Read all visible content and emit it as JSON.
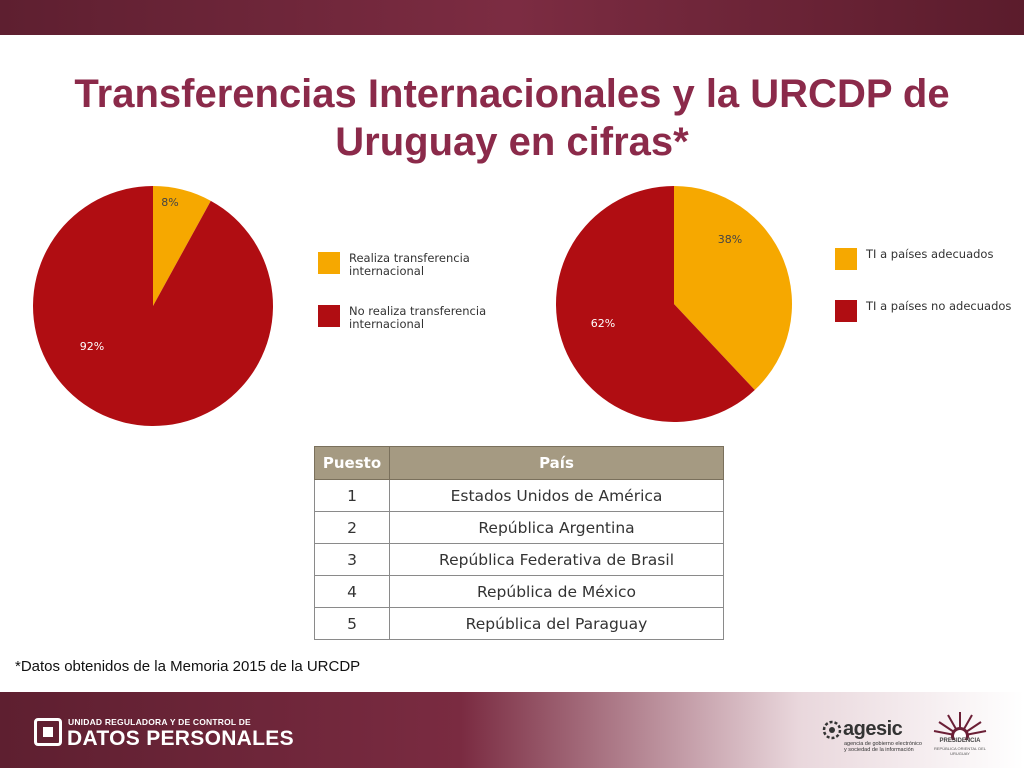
{
  "title": "Transferencias Internacionales y la URCDP de Uruguay en cifras*",
  "colors": {
    "accent": "#8b2a4a",
    "red": "#b00d12",
    "orange": "#f6a800"
  },
  "chart_data": [
    {
      "type": "pie",
      "slices": [
        {
          "label": "Realiza transferencia internacional",
          "value": 8,
          "value_label": "8%",
          "color": "#f6a800"
        },
        {
          "label": "No realiza transferencia internacional",
          "value": 92,
          "value_label": "92%",
          "color": "#b00d12"
        }
      ],
      "legend_position": "right"
    },
    {
      "type": "pie",
      "slices": [
        {
          "label": "TI a países adecuados",
          "value": 38,
          "value_label": "38%",
          "color": "#f6a800"
        },
        {
          "label": "TI a países no adecuados",
          "value": 62,
          "value_label": "62%",
          "color": "#b00d12"
        }
      ],
      "legend_position": "right"
    }
  ],
  "table": {
    "headers": [
      "Puesto",
      "País"
    ],
    "rows": [
      [
        "1",
        "Estados Unidos de América"
      ],
      [
        "2",
        "República Argentina"
      ],
      [
        "3",
        "República Federativa de Brasil"
      ],
      [
        "4",
        "República de México"
      ],
      [
        "5",
        "República del Paraguay"
      ]
    ]
  },
  "footnote": "*Datos obtenidos de la Memoria 2015 de la URCDP",
  "footer": {
    "org_small": "UNIDAD REGULADORA Y DE CONTROL DE",
    "org_big": "DATOS PERSONALES",
    "agesic_name": "agesic",
    "agesic_tagline": "agencia de gobierno electrónico y sociedad de la información",
    "presidencia": "PRESIDENCIA",
    "presidencia_sub": "REPÚBLICA ORIENTAL DEL URUGUAY",
    "icons": [
      "datos-personales-logo-icon",
      "agesic-logo-icon",
      "presidencia-sun-icon"
    ]
  }
}
